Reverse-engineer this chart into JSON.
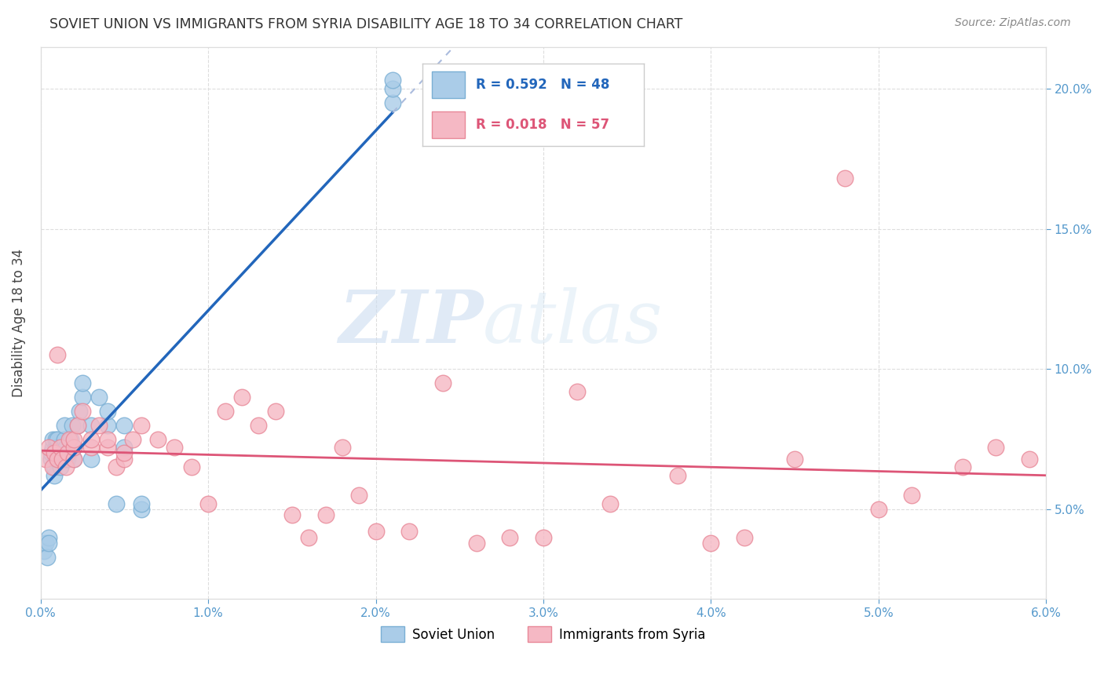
{
  "title": "SOVIET UNION VS IMMIGRANTS FROM SYRIA DISABILITY AGE 18 TO 34 CORRELATION CHART",
  "source": "Source: ZipAtlas.com",
  "ylabel": "Disability Age 18 to 34",
  "xlim": [
    0.0,
    0.06
  ],
  "ylim": [
    0.018,
    0.215
  ],
  "xticks": [
    0.0,
    0.01,
    0.02,
    0.03,
    0.04,
    0.05,
    0.06
  ],
  "xticklabels": [
    "0.0%",
    "1.0%",
    "2.0%",
    "3.0%",
    "4.0%",
    "5.0%",
    "6.0%"
  ],
  "yticks": [
    0.05,
    0.1,
    0.15,
    0.2
  ],
  "yticklabels": [
    "5.0%",
    "10.0%",
    "15.0%",
    "20.0%"
  ],
  "watermark_zip": "ZIP",
  "watermark_atlas": "atlas",
  "legend_r1": "R = 0.592",
  "legend_n1": "N = 48",
  "legend_r2": "R = 0.018",
  "legend_n2": "N = 57",
  "soviet_color": "#aacce8",
  "syria_color": "#f5b8c4",
  "soviet_edge": "#7aafd4",
  "syria_edge": "#e88898",
  "trend_blue": "#2266bb",
  "trend_pink": "#dd5577",
  "grid_color": "#dddddd",
  "soviet_x": [
    0.0002,
    0.0003,
    0.0004,
    0.0005,
    0.0005,
    0.0006,
    0.0006,
    0.0007,
    0.0007,
    0.0008,
    0.0008,
    0.0009,
    0.0009,
    0.0009,
    0.001,
    0.001,
    0.001,
    0.001,
    0.0012,
    0.0012,
    0.0013,
    0.0014,
    0.0014,
    0.0015,
    0.0015,
    0.0016,
    0.0017,
    0.0018,
    0.0019,
    0.002,
    0.002,
    0.0022,
    0.0023,
    0.0025,
    0.0025,
    0.003,
    0.003,
    0.0035,
    0.004,
    0.004,
    0.0045,
    0.005,
    0.005,
    0.006,
    0.006,
    0.021,
    0.021,
    0.021
  ],
  "soviet_y": [
    0.035,
    0.038,
    0.033,
    0.04,
    0.038,
    0.068,
    0.07,
    0.072,
    0.075,
    0.062,
    0.065,
    0.068,
    0.072,
    0.075,
    0.068,
    0.07,
    0.072,
    0.075,
    0.065,
    0.068,
    0.07,
    0.075,
    0.08,
    0.068,
    0.072,
    0.068,
    0.07,
    0.075,
    0.08,
    0.068,
    0.072,
    0.08,
    0.085,
    0.09,
    0.095,
    0.068,
    0.08,
    0.09,
    0.08,
    0.085,
    0.052,
    0.072,
    0.08,
    0.05,
    0.052,
    0.195,
    0.2,
    0.203
  ],
  "syria_x": [
    0.0003,
    0.0005,
    0.0007,
    0.0008,
    0.001,
    0.001,
    0.0012,
    0.0013,
    0.0015,
    0.0016,
    0.0017,
    0.002,
    0.002,
    0.002,
    0.0022,
    0.0025,
    0.003,
    0.003,
    0.0035,
    0.004,
    0.004,
    0.0045,
    0.005,
    0.005,
    0.0055,
    0.006,
    0.007,
    0.008,
    0.009,
    0.01,
    0.011,
    0.012,
    0.013,
    0.014,
    0.015,
    0.016,
    0.017,
    0.018,
    0.019,
    0.02,
    0.022,
    0.024,
    0.026,
    0.028,
    0.03,
    0.032,
    0.034,
    0.038,
    0.04,
    0.042,
    0.045,
    0.048,
    0.05,
    0.052,
    0.055,
    0.057,
    0.059
  ],
  "syria_y": [
    0.068,
    0.072,
    0.065,
    0.07,
    0.068,
    0.105,
    0.072,
    0.068,
    0.065,
    0.07,
    0.075,
    0.068,
    0.072,
    0.075,
    0.08,
    0.085,
    0.072,
    0.075,
    0.08,
    0.072,
    0.075,
    0.065,
    0.068,
    0.07,
    0.075,
    0.08,
    0.075,
    0.072,
    0.065,
    0.052,
    0.085,
    0.09,
    0.08,
    0.085,
    0.048,
    0.04,
    0.048,
    0.072,
    0.055,
    0.042,
    0.042,
    0.095,
    0.038,
    0.04,
    0.04,
    0.092,
    0.052,
    0.062,
    0.038,
    0.04,
    0.068,
    0.168,
    0.05,
    0.055,
    0.065,
    0.072,
    0.068
  ],
  "blue_trend_x0": 0.0,
  "blue_trend_x_solid_end": 0.021,
  "blue_trend_x_dash_end": 0.055,
  "pink_trend_x0": 0.0,
  "pink_trend_x_end": 0.06
}
